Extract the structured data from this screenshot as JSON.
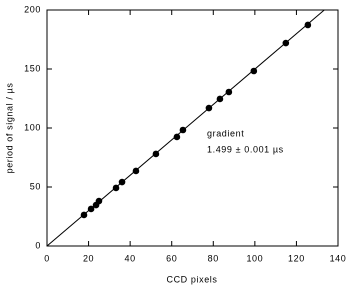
{
  "chart_data": {
    "type": "scatter",
    "x_label": "CCD pixels",
    "y_label": "period of signal / µs",
    "annotations": [
      "gradient",
      "1.499 ± 0.001 µs"
    ],
    "color": "#000000",
    "x": [
      17.8,
      21.2,
      23.6,
      25.0,
      33.2,
      36.1,
      42.8,
      52.4,
      62.5,
      65.4,
      77.9,
      83.2,
      87.5,
      99.5,
      114.9,
      125.5
    ],
    "values": [
      26.3,
      31.4,
      34.7,
      38.1,
      49.2,
      54.2,
      63.6,
      78.0,
      92.4,
      98.3,
      116.9,
      124.6,
      130.5,
      148.3,
      172.0,
      187.3
    ],
    "fit_line": {
      "x": [
        0,
        133.4
      ],
      "y": [
        0,
        200
      ]
    },
    "xlim": [
      0,
      140
    ],
    "xticks": [
      0,
      20,
      40,
      60,
      80,
      100,
      120,
      140
    ],
    "ylim": [
      0,
      200
    ],
    "yticks": [
      0,
      50,
      100,
      150,
      200
    ]
  }
}
